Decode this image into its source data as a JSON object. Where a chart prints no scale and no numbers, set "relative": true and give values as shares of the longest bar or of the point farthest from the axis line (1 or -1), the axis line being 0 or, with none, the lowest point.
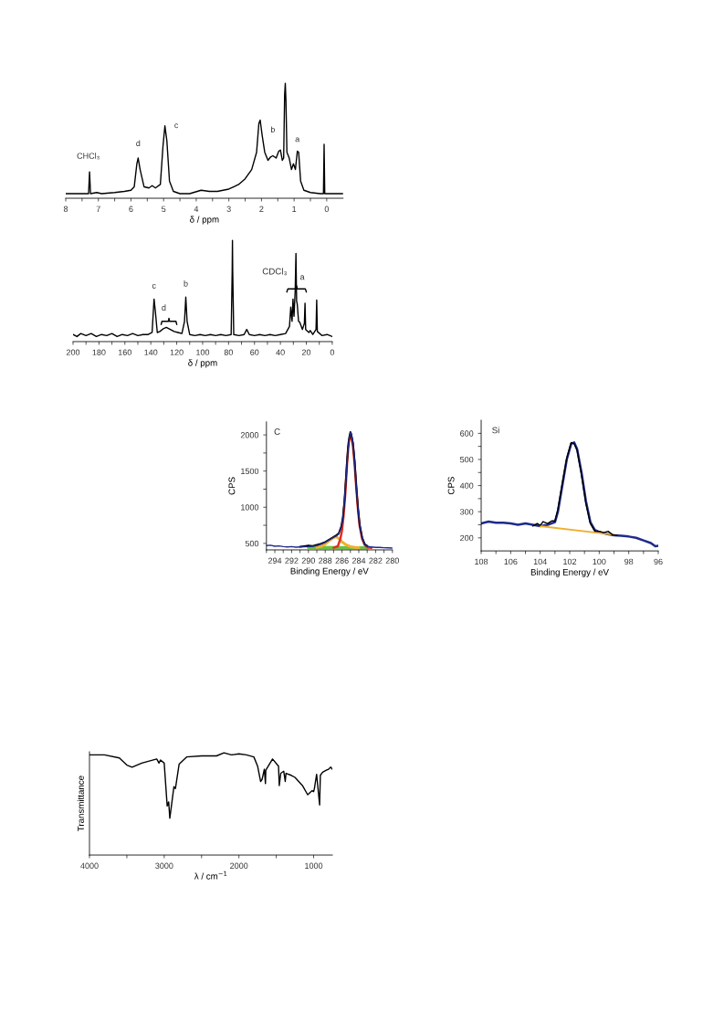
{
  "chart_data": [
    {
      "type": "line",
      "relative": true,
      "xlabel": "δ / ppm",
      "xlim": [
        8,
        -0.5
      ],
      "xticks": [
        8,
        {
          "value": 7.5,
          "label": null
        },
        7,
        {
          "value": 6.5,
          "label": null
        },
        6,
        {
          "value": 5.5,
          "label": null
        },
        5,
        {
          "value": 4.5,
          "label": null
        },
        4,
        {
          "value": 3.5,
          "label": null
        },
        3,
        {
          "value": 2.5,
          "label": null
        },
        2,
        {
          "value": 1.5,
          "label": null
        },
        1,
        {
          "value": 0.5,
          "label": null
        },
        0
      ],
      "annotations": [
        {
          "text": "CHCl₃",
          "x": 7.27,
          "y": 0.23
        },
        {
          "text": "d",
          "x": 5.78,
          "y": 0.35
        },
        {
          "text": "c",
          "x": 4.96,
          "y": 0.63
        },
        {
          "text": "b",
          "x": 1.65,
          "y": 0.37
        },
        {
          "text": "a",
          "x": 0.9,
          "y": 0.41
        }
      ],
      "series": [
        {
          "color": "#000000",
          "x": [
            8.0,
            7.5,
            7.3,
            7.27,
            7.24,
            7.05,
            6.9,
            6.5,
            6.2,
            6.0,
            5.9,
            5.82,
            5.78,
            5.72,
            5.6,
            5.45,
            5.35,
            5.25,
            5.1,
            5.02,
            4.96,
            4.9,
            4.82,
            4.7,
            4.5,
            4.2,
            3.85,
            3.6,
            3.35,
            3.0,
            2.7,
            2.5,
            2.3,
            2.15,
            2.08,
            2.04,
            1.98,
            1.9,
            1.8,
            1.72,
            1.65,
            1.55,
            1.47,
            1.42,
            1.36,
            1.32,
            1.29,
            1.27,
            1.25,
            1.22,
            1.15,
            1.08,
            1.02,
            0.96,
            0.9,
            0.86,
            0.8,
            0.7,
            0.5,
            0.2,
            0.1,
            0.08,
            0.06,
            -0.3,
            -0.5
          ],
          "values": [
            0.04,
            0.04,
            0.04,
            0.23,
            0.04,
            0.05,
            0.04,
            0.05,
            0.06,
            0.07,
            0.1,
            0.3,
            0.35,
            0.25,
            0.1,
            0.09,
            0.11,
            0.09,
            0.12,
            0.45,
            0.63,
            0.5,
            0.15,
            0.06,
            0.04,
            0.04,
            0.07,
            0.06,
            0.06,
            0.08,
            0.12,
            0.17,
            0.25,
            0.4,
            0.65,
            0.68,
            0.55,
            0.4,
            0.33,
            0.36,
            0.37,
            0.35,
            0.41,
            0.42,
            0.33,
            0.35,
            0.9,
            1.0,
            0.85,
            0.4,
            0.35,
            0.25,
            0.3,
            0.25,
            0.41,
            0.4,
            0.15,
            0.07,
            0.05,
            0.04,
            0.04,
            0.47,
            0.04,
            0.04,
            0.04
          ]
        }
      ]
    },
    {
      "type": "line",
      "relative": true,
      "xlabel": "δ / ppm",
      "xlim": [
        200,
        0
      ],
      "xticks": [
        200,
        {
          "value": 190,
          "label": null
        },
        180,
        {
          "value": 170,
          "label": null
        },
        160,
        {
          "value": 150,
          "label": null
        },
        140,
        {
          "value": 130,
          "label": null
        },
        120,
        {
          "value": 110,
          "label": null
        },
        100,
        {
          "value": 90,
          "label": null
        },
        80,
        {
          "value": 70,
          "label": null
        },
        60,
        {
          "value": 50,
          "label": null
        },
        40,
        {
          "value": 30,
          "label": null
        },
        20,
        {
          "value": 10,
          "label": null
        },
        0
      ],
      "annotations": [
        {
          "text": "c",
          "x": 137.5,
          "y": 0.42
        },
        {
          "text": "d",
          "x": 128,
          "y": 0.14
        },
        {
          "text": "b",
          "x": 113,
          "y": 0.44
        },
        "CDCl₃",
        {
          "text": "a",
          "x": 28,
          "y": 0.87
        }
      ],
      "series": [
        {
          "color": "#000000",
          "x": [
            200,
            197,
            194,
            190,
            186,
            182,
            178,
            174,
            170,
            166,
            162,
            158,
            154,
            150,
            146,
            142,
            139,
            137.5,
            136.5,
            135,
            133,
            130,
            128,
            125,
            122,
            119,
            116,
            114,
            113,
            112,
            110,
            106,
            102,
            98,
            94,
            90,
            86,
            82,
            78,
            77.2,
            77,
            76.8,
            76,
            72,
            68,
            66,
            64,
            60,
            56,
            52,
            48,
            44,
            40,
            36,
            33,
            32,
            31,
            30.3,
            29.5,
            28.6,
            28,
            27.5,
            27,
            26,
            25,
            23,
            21.5,
            21,
            20.5,
            18,
            17,
            15,
            12.5,
            12,
            11.5,
            8,
            4,
            0
          ],
          "values": [
            0.07,
            0.05,
            0.08,
            0.06,
            0.08,
            0.05,
            0.07,
            0.06,
            0.08,
            0.05,
            0.07,
            0.06,
            0.08,
            0.06,
            0.07,
            0.07,
            0.09,
            0.42,
            0.3,
            0.09,
            0.1,
            0.13,
            0.14,
            0.12,
            0.1,
            0.09,
            0.08,
            0.2,
            0.44,
            0.2,
            0.07,
            0.06,
            0.07,
            0.06,
            0.07,
            0.06,
            0.07,
            0.06,
            0.07,
            0.7,
            1.0,
            0.7,
            0.07,
            0.06,
            0.07,
            0.12,
            0.07,
            0.06,
            0.07,
            0.06,
            0.07,
            0.06,
            0.07,
            0.08,
            0.15,
            0.34,
            0.2,
            0.42,
            0.25,
            0.5,
            0.87,
            0.4,
            0.37,
            0.2,
            0.19,
            0.12,
            0.18,
            0.38,
            0.12,
            0.09,
            0.11,
            0.07,
            0.12,
            0.41,
            0.1,
            0.06,
            0.07,
            0.05
          ]
        }
      ]
    },
    {
      "type": "line",
      "xlabel": "Binding Energy / eV",
      "ylabel": "CPS",
      "xlim": [
        295,
        280
      ],
      "ylim": [
        410,
        2180
      ],
      "xticks": [
        {
          "value": 295,
          "label": null
        },
        294,
        {
          "value": 293,
          "label": null
        },
        292,
        {
          "value": 291,
          "label": null
        },
        290,
        {
          "value": 289,
          "label": null
        },
        288,
        {
          "value": 287,
          "label": null
        },
        286,
        {
          "value": 285,
          "label": null
        },
        284,
        {
          "value": 283,
          "label": null
        },
        282,
        {
          "value": 281,
          "label": null
        },
        280
      ],
      "yticks": [
        500,
        {
          "value": 750,
          "label": null
        },
        1000,
        {
          "value": 1250,
          "label": null
        },
        1500,
        {
          "value": 1750,
          "label": null
        },
        2000
      ],
      "annotations": [
        "C"
      ],
      "series": [
        {
          "color": "#6cc040",
          "x": [
            290,
            283
          ],
          "values": [
            445,
            438
          ]
        },
        {
          "color": "#f0b030",
          "x": [
            289,
            288.5,
            288,
            287.5,
            287,
            286.8,
            286.6,
            286.3,
            286,
            285.5,
            285,
            284.5,
            284
          ],
          "values": [
            445,
            460,
            490,
            540,
            580,
            590,
            585,
            560,
            520,
            480,
            455,
            445,
            440
          ]
        },
        {
          "color": "#e03020",
          "x": [
            287,
            286.5,
            286.2,
            286,
            285.8,
            285.6,
            285.4,
            285.2,
            285.05,
            285,
            284.9,
            284.7,
            284.5,
            284.3,
            284.1,
            283.9,
            283.6,
            283.3,
            283,
            282.5
          ],
          "values": [
            440,
            460,
            560,
            680,
            900,
            1200,
            1600,
            1900,
            1990,
            2000,
            1980,
            1850,
            1600,
            1270,
            970,
            740,
            560,
            480,
            445,
            438
          ]
        },
        {
          "color": "#000000",
          "x": [
            291,
            290.5,
            290,
            289.5,
            289,
            288.5,
            288,
            287.5,
            287,
            286.7,
            286.4,
            286.1,
            285.9,
            285.7,
            285.5,
            285.3,
            285.1,
            285,
            284.9,
            284.7,
            284.5,
            284.3,
            284.1,
            283.9,
            283.6,
            283.3,
            283
          ],
          "values": [
            455,
            462,
            470,
            465,
            480,
            495,
            520,
            555,
            590,
            610,
            635,
            730,
            860,
            1100,
            1460,
            1810,
            1990,
            2040,
            2010,
            1890,
            1640,
            1290,
            990,
            760,
            580,
            490,
            465
          ]
        },
        {
          "color": "#1f2a8c",
          "x": [
            295,
            294.5,
            294,
            293.5,
            293,
            292.5,
            292,
            291.5,
            291,
            290.5,
            290,
            289.5,
            289,
            288.5,
            288,
            287.5,
            287,
            286.7,
            286.4,
            286.1,
            285.9,
            285.7,
            285.5,
            285.3,
            285.1,
            285,
            284.9,
            284.7,
            284.5,
            284.3,
            284.1,
            283.9,
            283.6,
            283.3,
            283,
            282.5,
            282,
            281.5,
            281,
            280.5,
            280
          ],
          "values": [
            470,
            475,
            460,
            465,
            455,
            450,
            455,
            448,
            450,
            452,
            455,
            460,
            470,
            490,
            515,
            550,
            585,
            600,
            630,
            720,
            850,
            1100,
            1450,
            1800,
            1980,
            2030,
            2020,
            1900,
            1650,
            1300,
            1000,
            760,
            580,
            490,
            460,
            450,
            445,
            445,
            440,
            438,
            435
          ]
        }
      ]
    },
    {
      "type": "line",
      "xlabel": "Binding Energy / eV",
      "ylabel": "CPS",
      "xlim": [
        108,
        96
      ],
      "ylim": [
        150,
        650
      ],
      "xticks": [
        108,
        {
          "value": 107,
          "label": null
        },
        106,
        {
          "value": 105,
          "label": null
        },
        104,
        {
          "value": 103,
          "label": null
        },
        102,
        {
          "value": 101,
          "label": null
        },
        100,
        {
          "value": 99,
          "label": null
        },
        98,
        {
          "value": 97,
          "label": null
        },
        96
      ],
      "yticks": [
        200,
        {
          "value": 250,
          "label": null
        },
        300,
        {
          "value": 350,
          "label": null
        },
        400,
        {
          "value": 450,
          "label": null
        },
        500,
        {
          "value": 550,
          "label": null
        },
        600
      ],
      "annotations": [
        "Si"
      ],
      "series": [
        {
          "color": "#1f2a8c",
          "x": [
            108,
            107.5,
            107,
            106.5,
            106,
            105.5,
            105,
            104.5,
            104,
            103.5,
            103,
            102.8,
            102.5,
            102.2,
            101.9,
            101.7,
            101.5,
            101.2,
            100.9,
            100.6,
            100.3,
            100,
            99.5,
            99,
            98.5,
            98,
            97.5,
            97,
            96.5,
            96.2,
            96
          ],
          "values": [
            255,
            262,
            258,
            258,
            255,
            250,
            255,
            250,
            245,
            250,
            260,
            300,
            400,
            500,
            560,
            565,
            540,
            450,
            340,
            260,
            230,
            222,
            215,
            210,
            208,
            205,
            200,
            190,
            180,
            168,
            170
          ]
        },
        {
          "color": "#f0b030",
          "x": [
            104,
            99
          ],
          "values": [
            245,
            212
          ]
        },
        {
          "color": "#000000",
          "x": [
            104.5,
            104.2,
            104,
            103.8,
            103.5,
            103.2,
            103,
            102.8,
            102.5,
            102.2,
            101.9,
            101.7,
            101.5,
            101.2,
            100.9,
            100.6,
            100.3,
            100,
            99.7,
            99.4,
            99.1,
            98.8
          ],
          "values": [
            245,
            255,
            248,
            262,
            255,
            265,
            265,
            310,
            410,
            505,
            565,
            560,
            535,
            440,
            330,
            255,
            225,
            225,
            220,
            225,
            212,
            210
          ]
        }
      ]
    },
    {
      "type": "line",
      "relative": true,
      "xlabel": "λ / cm$^{−1}$",
      "ylabel": "Transmittance",
      "xlim": [
        4000,
        750
      ],
      "xticks": [
        4000,
        {
          "value": 3500,
          "label": null
        },
        3000,
        {
          "value": 2500,
          "label": null
        },
        2000,
        {
          "value": 1500,
          "label": null
        },
        1000
      ],
      "series": [
        {
          "color": "#000000",
          "x": [
            4000,
            3800,
            3600,
            3500,
            3430,
            3300,
            3100,
            3070,
            3050,
            3000,
            2960,
            2940,
            2925,
            2900,
            2870,
            2850,
            2800,
            2700,
            2500,
            2300,
            2200,
            2100,
            2000,
            1900,
            1800,
            1750,
            1710,
            1690,
            1660,
            1645,
            1640,
            1550,
            1470,
            1460,
            1440,
            1400,
            1380,
            1370,
            1300,
            1250,
            1150,
            1080,
            1020,
            1000,
            990,
            960,
            920,
            910,
            880,
            830,
            800,
            770,
            750
          ],
          "values": [
            0.98,
            0.98,
            0.95,
            0.88,
            0.86,
            0.9,
            0.94,
            0.9,
            0.93,
            0.9,
            0.48,
            0.52,
            0.36,
            0.5,
            0.67,
            0.65,
            0.89,
            0.96,
            0.97,
            0.97,
            1.0,
            0.98,
            0.99,
            0.98,
            0.96,
            0.87,
            0.72,
            0.74,
            0.84,
            0.7,
            0.83,
            0.94,
            0.87,
            0.68,
            0.8,
            0.82,
            0.72,
            0.8,
            0.78,
            0.76,
            0.68,
            0.59,
            0.63,
            0.62,
            0.65,
            0.79,
            0.49,
            0.78,
            0.81,
            0.83,
            0.84,
            0.86,
            0.84
          ]
        }
      ]
    }
  ]
}
